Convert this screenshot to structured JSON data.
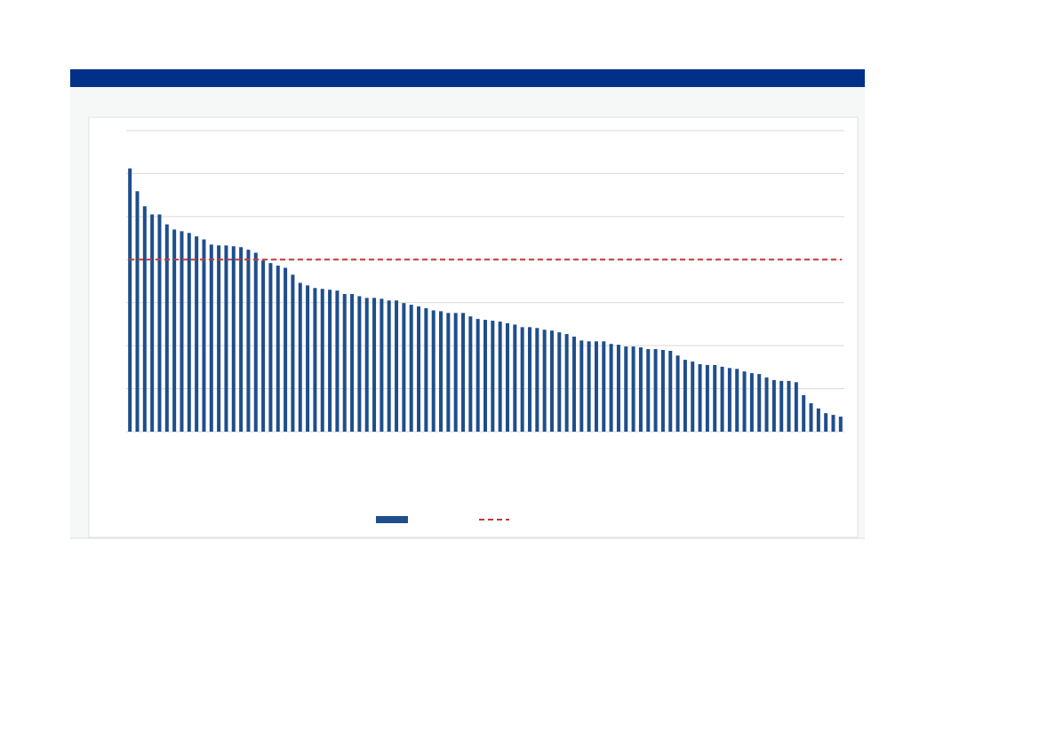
{
  "chart_data": {
    "type": "bar",
    "series": [
      {
        "color": "#1f4e8c",
        "values": [
          6.12,
          5.59,
          5.24,
          5.05,
          5.05,
          4.82,
          4.7,
          4.66,
          4.62,
          4.54,
          4.47,
          4.35,
          4.33,
          4.33,
          4.31,
          4.29,
          4.23,
          4.16,
          3.98,
          3.92,
          3.86,
          3.81,
          3.65,
          3.46,
          3.4,
          3.34,
          3.32,
          3.3,
          3.28,
          3.2,
          3.2,
          3.15,
          3.11,
          3.11,
          3.09,
          3.05,
          3.05,
          2.99,
          2.95,
          2.91,
          2.87,
          2.82,
          2.8,
          2.76,
          2.76,
          2.76,
          2.68,
          2.62,
          2.6,
          2.58,
          2.56,
          2.52,
          2.49,
          2.43,
          2.43,
          2.41,
          2.37,
          2.35,
          2.31,
          2.27,
          2.21,
          2.12,
          2.1,
          2.1,
          2.1,
          2.04,
          2.02,
          1.98,
          1.98,
          1.96,
          1.92,
          1.92,
          1.9,
          1.88,
          1.77,
          1.67,
          1.63,
          1.57,
          1.55,
          1.55,
          1.51,
          1.48,
          1.46,
          1.4,
          1.36,
          1.34,
          1.26,
          1.2,
          1.18,
          1.18,
          1.15,
          0.85,
          0.66,
          0.54,
          0.43,
          0.39,
          0.35
        ]
      }
    ],
    "reference_line": {
      "value": 4,
      "color": "#c0393b"
    },
    "ylim": [
      0,
      7
    ],
    "yticks": [
      0,
      1,
      2,
      3,
      4,
      5,
      6,
      7
    ],
    "grid": true
  }
}
